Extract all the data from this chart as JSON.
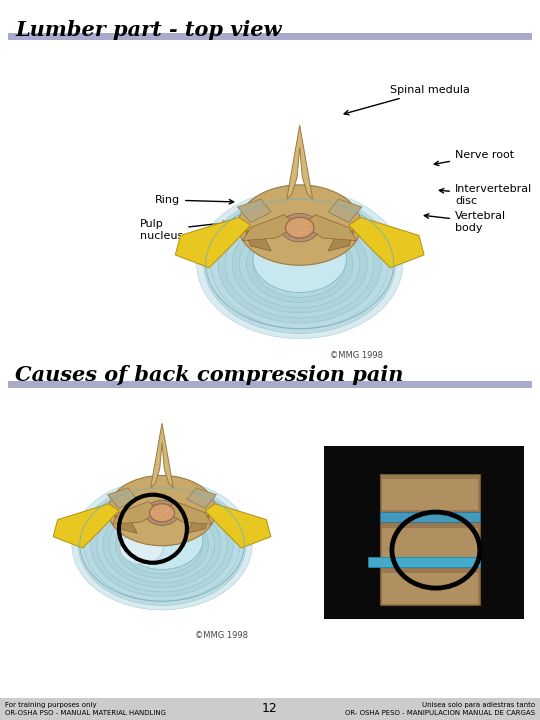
{
  "background_color": "#ffffff",
  "title1": "Lumber part - top view",
  "title2": "Causes of back compression pain",
  "title_fontsize": 15,
  "title_style": "italic",
  "title_weight": "bold",
  "title_family": "serif",
  "underline_color": "#9999bb",
  "copyright1": "©MMG 1998",
  "copyright2": "©MMG 1998",
  "footer_left": "For training purposes only\nOR-OSHA PSO - MANUAL MATERIAL HANDLING",
  "footer_center": "12",
  "footer_right": "Unisea solo para adiestras tanto\nOR- OSHA PESO - MANIPULACION MANUAL DE CARGAS",
  "footer_fontsize": 5.0,
  "footer_bg": "#cccccc"
}
